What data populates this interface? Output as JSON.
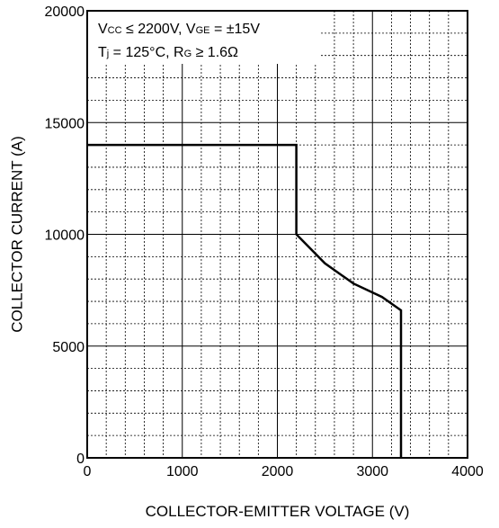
{
  "chart_data": {
    "type": "line",
    "title": "",
    "xlabel": "COLLECTOR-EMITTER VOLTAGE (V)",
    "ylabel": "COLLECTOR CURRENT (A)",
    "xlim": [
      0,
      4000
    ],
    "ylim": [
      0,
      20000
    ],
    "x_ticks": [
      0,
      1000,
      2000,
      3000,
      4000
    ],
    "y_ticks": [
      0,
      5000,
      10000,
      15000,
      20000
    ],
    "x_tick_labels": [
      "0",
      "1000",
      "2000",
      "3000",
      "4000"
    ],
    "y_tick_labels": [
      "0",
      "5000",
      "10000",
      "15000",
      "20000"
    ],
    "grid": {
      "major": true,
      "minor": true,
      "minor_divisions": 5
    },
    "annotations": [
      {
        "id": "line1",
        "parts": [
          {
            "text": "V",
            "sub": false
          },
          {
            "text": "CC",
            "sub": true
          },
          {
            "text": " ≤ 2200V, V",
            "sub": false
          },
          {
            "text": "GE",
            "sub": true
          },
          {
            "text": " = ±15V",
            "sub": false
          }
        ]
      },
      {
        "id": "line2",
        "parts": [
          {
            "text": "T",
            "sub": false
          },
          {
            "text": "j",
            "sub": true
          },
          {
            "text": " = 125°C, R",
            "sub": false
          },
          {
            "text": "G",
            "sub": true
          },
          {
            "text": " ≥ 1.6Ω",
            "sub": false
          }
        ]
      }
    ],
    "series": [
      {
        "color": "#000000",
        "points": [
          [
            0,
            14000
          ],
          [
            2200,
            14000
          ],
          [
            2200,
            10000
          ],
          [
            2500,
            8700
          ],
          [
            2800,
            7800
          ],
          [
            3100,
            7200
          ],
          [
            3300,
            6600
          ],
          [
            3300,
            0
          ]
        ]
      }
    ]
  }
}
